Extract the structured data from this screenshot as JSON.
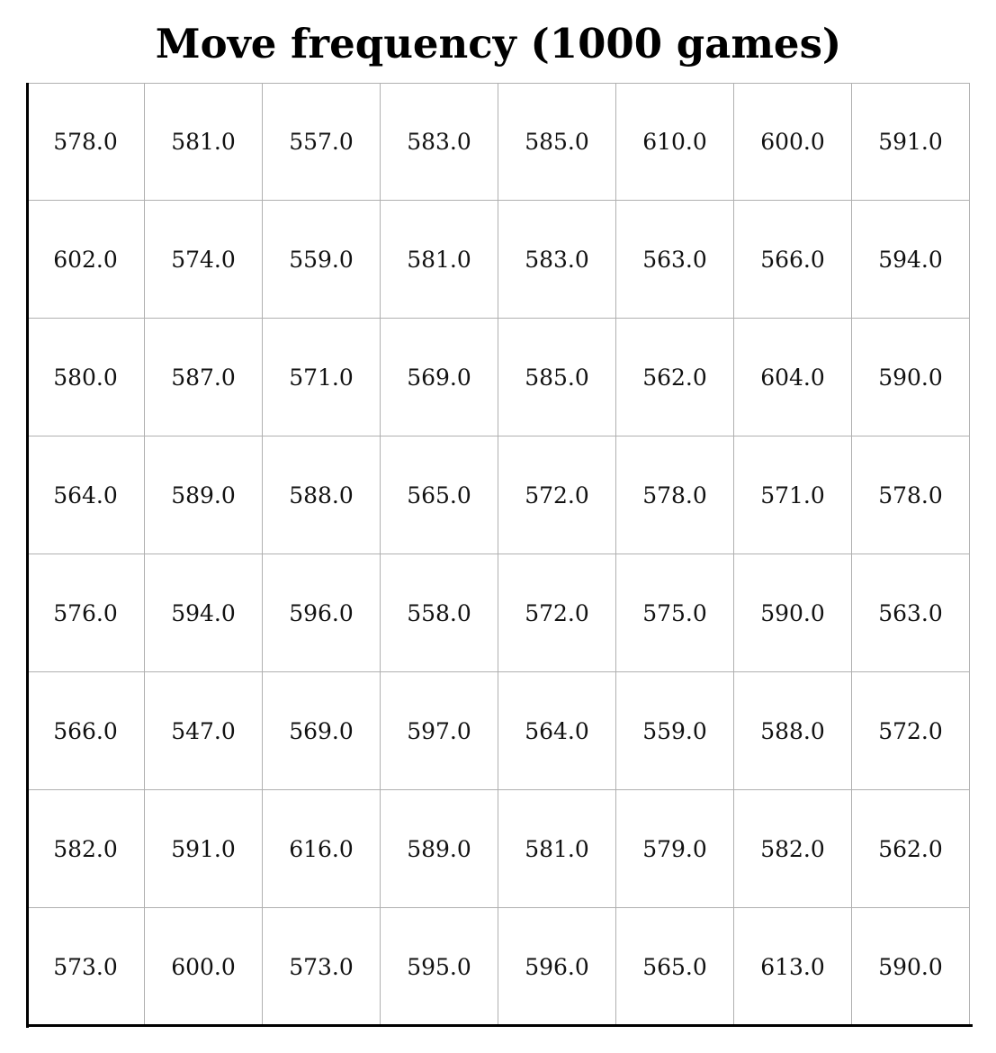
{
  "chart_data": {
    "type": "heatmap",
    "title": "Move frequency (1000 games)",
    "xlabel": "",
    "ylabel": "",
    "grid": true,
    "rows": 8,
    "cols": 8,
    "values": [
      [
        578.0,
        581.0,
        557.0,
        583.0,
        585.0,
        610.0,
        600.0,
        591.0
      ],
      [
        602.0,
        574.0,
        559.0,
        581.0,
        583.0,
        563.0,
        566.0,
        594.0
      ],
      [
        580.0,
        587.0,
        571.0,
        569.0,
        585.0,
        562.0,
        604.0,
        590.0
      ],
      [
        564.0,
        589.0,
        588.0,
        565.0,
        572.0,
        578.0,
        571.0,
        578.0
      ],
      [
        576.0,
        594.0,
        596.0,
        558.0,
        572.0,
        575.0,
        590.0,
        563.0
      ],
      [
        566.0,
        547.0,
        569.0,
        597.0,
        564.0,
        559.0,
        588.0,
        572.0
      ],
      [
        582.0,
        591.0,
        616.0,
        589.0,
        581.0,
        579.0,
        582.0,
        562.0
      ],
      [
        573.0,
        600.0,
        573.0,
        595.0,
        596.0,
        565.0,
        613.0,
        590.0
      ]
    ],
    "colors": {
      "cell_fill": "#ffffff",
      "grid_line": "#b0b0b0",
      "axis_line": "#000000",
      "text": "#111111"
    }
  }
}
